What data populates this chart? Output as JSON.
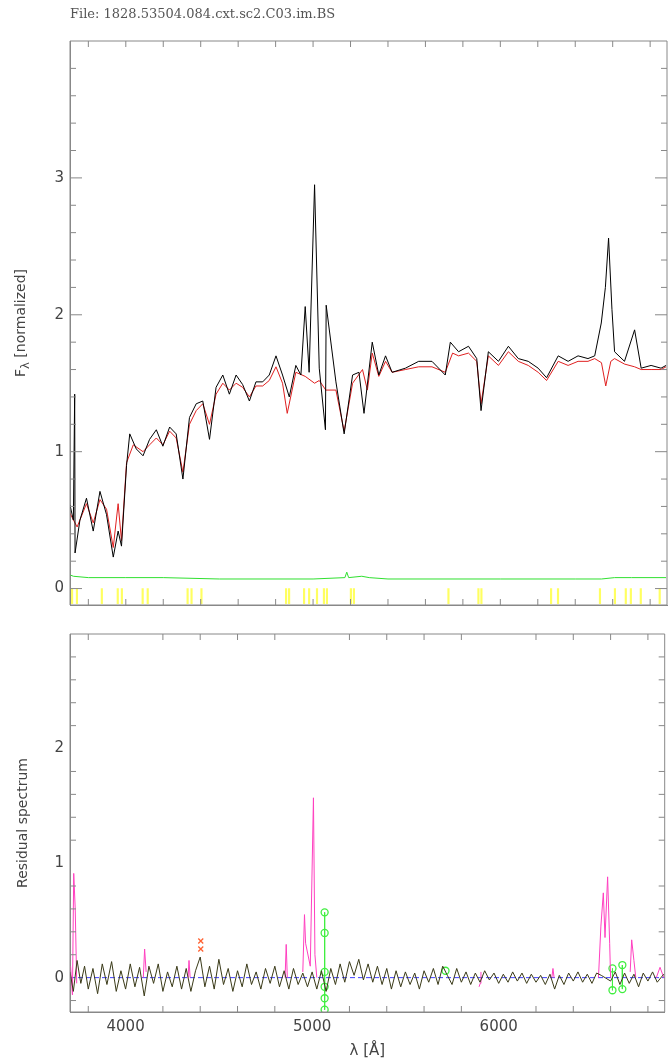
{
  "chart_data": [
    {
      "type": "line",
      "title": "File: 1828.53504.084.cxt.sc2.C03.im.BS",
      "ylabel": "F$_{λ}$ [normalized]",
      "xlim": [
        3702,
        6890
      ],
      "ylim": [
        -0.12,
        4
      ],
      "tick_labels": "y",
      "xticks": [
        {
          "value": 3800,
          "label": null
        },
        {
          "value": 4000,
          "label": null
        },
        {
          "value": 4200,
          "label": null
        },
        {
          "value": 4400,
          "label": null
        },
        {
          "value": 4600,
          "label": null
        },
        {
          "value": 4800,
          "label": null
        },
        {
          "value": 5000,
          "label": null
        },
        {
          "value": 5200,
          "label": null
        },
        {
          "value": 5400,
          "label": null
        },
        {
          "value": 5600,
          "label": null
        },
        {
          "value": 5800,
          "label": null
        },
        {
          "value": 6000,
          "label": null
        },
        {
          "value": 6200,
          "label": null
        },
        {
          "value": 6400,
          "label": null
        },
        {
          "value": 6600,
          "label": null
        },
        {
          "value": 6800,
          "label": null
        }
      ],
      "yticks": [
        0,
        {
          "value": 0.2,
          "label": null
        },
        {
          "value": 0.4,
          "label": null
        },
        {
          "value": 0.6,
          "label": null
        },
        {
          "value": 0.8,
          "label": null
        },
        1,
        {
          "value": 1.2,
          "label": null
        },
        {
          "value": 1.4,
          "label": null
        },
        {
          "value": 1.6,
          "label": null
        },
        {
          "value": 1.8,
          "label": null
        },
        2,
        {
          "value": 2.2,
          "label": null
        },
        {
          "value": 2.4,
          "label": null
        },
        {
          "value": 2.6,
          "label": null
        },
        {
          "value": 2.8,
          "label": null
        },
        3,
        {
          "value": 3.2,
          "label": null
        },
        {
          "value": 3.4,
          "label": null
        },
        {
          "value": 3.6,
          "label": null
        },
        {
          "value": 3.8,
          "label": null
        }
      ],
      "series": [
        {
          "type": "bar",
          "color": "#ffff60",
          "x": [
            3713,
            3739,
            3872,
            3957,
            3979,
            4090,
            4117,
            4330,
            4351,
            4404,
            4856,
            4872,
            4952,
            4979,
            5021,
            5058,
            5074,
            5202,
            5218,
            5723,
            5883,
            5899,
            6271,
            6308,
            6532,
            6612,
            6670,
            6697,
            6750,
            6851
          ],
          "values": [
            -0.11,
            -0.11,
            -0.11,
            -0.11,
            -0.11,
            -0.11,
            -0.11,
            -0.11,
            -0.11,
            -0.11,
            -0.11,
            -0.11,
            -0.11,
            -0.11,
            -0.11,
            -0.11,
            -0.11,
            -0.11,
            -0.11,
            -0.11,
            -0.11,
            -0.11,
            -0.11,
            -0.11,
            -0.11,
            -0.11,
            -0.11,
            -0.11,
            -0.11,
            -0.11
          ]
        },
        {
          "color": "#30e030",
          "marker": "none",
          "x": [
            3702,
            3720,
            3800,
            4000,
            4200,
            4500,
            5000,
            5170,
            5180,
            5190,
            5260,
            5300,
            5400,
            6000,
            6400,
            6540,
            6610,
            6700,
            6885
          ],
          "values": [
            0.1,
            0.09,
            0.08,
            0.08,
            0.08,
            0.07,
            0.07,
            0.08,
            0.12,
            0.08,
            0.09,
            0.08,
            0.07,
            0.07,
            0.07,
            0.07,
            0.08,
            0.08,
            0.08
          ]
        },
        {
          "color": "#000000",
          "marker": "none",
          "x": [
            3702,
            3720,
            3727,
            3729,
            3755,
            3790,
            3826,
            3862,
            3897,
            3933,
            3959,
            3977,
            4004,
            4021,
            4056,
            4092,
            4127,
            4163,
            4198,
            4234,
            4269,
            4305,
            4340,
            4376,
            4411,
            4447,
            4482,
            4518,
            4553,
            4589,
            4624,
            4660,
            4695,
            4731,
            4766,
            4802,
            4837,
            4873,
            4908,
            4935,
            4958,
            4979,
            5008,
            5033,
            5066,
            5070,
            5122,
            5166,
            5211,
            5245,
            5272,
            5316,
            5351,
            5387,
            5422,
            5493,
            5564,
            5635,
            5706,
            5733,
            5777,
            5830,
            5874,
            5897,
            5936,
            5990,
            6043,
            6096,
            6149,
            6202,
            6247,
            6309,
            6362,
            6415,
            6468,
            6504,
            6539,
            6561,
            6578,
            6596,
            6610,
            6663,
            6717,
            6752,
            6805,
            6858,
            6885
          ],
          "values": [
            0.61,
            0.5,
            1.42,
            0.26,
            0.5,
            0.66,
            0.42,
            0.71,
            0.54,
            0.23,
            0.42,
            0.31,
            0.9,
            1.13,
            1.02,
            0.97,
            1.09,
            1.16,
            1.04,
            1.18,
            1.13,
            0.8,
            1.25,
            1.35,
            1.37,
            1.09,
            1.47,
            1.56,
            1.42,
            1.56,
            1.49,
            1.37,
            1.51,
            1.51,
            1.56,
            1.7,
            1.56,
            1.4,
            1.63,
            1.56,
            2.06,
            1.58,
            2.95,
            1.61,
            1.16,
            2.07,
            1.51,
            1.13,
            1.56,
            1.58,
            1.28,
            1.8,
            1.56,
            1.7,
            1.58,
            1.61,
            1.66,
            1.66,
            1.56,
            1.8,
            1.73,
            1.77,
            1.68,
            1.3,
            1.73,
            1.66,
            1.77,
            1.68,
            1.66,
            1.61,
            1.54,
            1.7,
            1.66,
            1.7,
            1.68,
            1.7,
            1.94,
            2.2,
            2.56,
            2.04,
            1.73,
            1.66,
            1.89,
            1.61,
            1.63,
            1.61,
            1.63
          ]
        },
        {
          "color": "#e02020",
          "marker": "none",
          "x": [
            3702,
            3740,
            3790,
            3826,
            3862,
            3897,
            3933,
            3959,
            3977,
            4004,
            4040,
            4092,
            4127,
            4163,
            4198,
            4234,
            4269,
            4305,
            4340,
            4376,
            4411,
            4447,
            4482,
            4518,
            4553,
            4589,
            4624,
            4660,
            4695,
            4731,
            4766,
            4802,
            4837,
            4862,
            4908,
            4958,
            5008,
            5033,
            5068,
            5122,
            5166,
            5211,
            5264,
            5290,
            5316,
            5351,
            5387,
            5422,
            5493,
            5564,
            5635,
            5706,
            5745,
            5777,
            5830,
            5874,
            5897,
            5936,
            5990,
            6043,
            6096,
            6149,
            6202,
            6247,
            6309,
            6362,
            6415,
            6468,
            6504,
            6540,
            6563,
            6590,
            6610,
            6663,
            6717,
            6752,
            6805,
            6858,
            6885
          ],
          "values": [
            0.55,
            0.45,
            0.62,
            0.48,
            0.65,
            0.58,
            0.3,
            0.62,
            0.35,
            0.92,
            1.05,
            1.0,
            1.05,
            1.1,
            1.05,
            1.15,
            1.1,
            0.85,
            1.2,
            1.3,
            1.35,
            1.2,
            1.42,
            1.5,
            1.45,
            1.5,
            1.47,
            1.4,
            1.48,
            1.48,
            1.52,
            1.62,
            1.5,
            1.28,
            1.58,
            1.55,
            1.5,
            1.52,
            1.45,
            1.45,
            1.15,
            1.5,
            1.6,
            1.45,
            1.72,
            1.55,
            1.66,
            1.58,
            1.6,
            1.62,
            1.62,
            1.58,
            1.72,
            1.7,
            1.72,
            1.66,
            1.35,
            1.7,
            1.63,
            1.73,
            1.66,
            1.63,
            1.58,
            1.52,
            1.66,
            1.63,
            1.66,
            1.66,
            1.68,
            1.65,
            1.48,
            1.66,
            1.68,
            1.64,
            1.62,
            1.6,
            1.6,
            1.6,
            1.62
          ]
        }
      ]
    },
    {
      "type": "line",
      "xlabel": "λ [Å]",
      "ylabel": "Residual spectrum",
      "xlim": [
        3702,
        6890
      ],
      "ylim": [
        -0.3,
        3
      ],
      "xticks": [
        {
          "value": 3800,
          "label": null
        },
        4000,
        {
          "value": 4200,
          "label": null
        },
        {
          "value": 4400,
          "label": null
        },
        {
          "value": 4600,
          "label": null
        },
        {
          "value": 4800,
          "label": null
        },
        5000,
        {
          "value": 5200,
          "label": null
        },
        {
          "value": 5400,
          "label": null
        },
        {
          "value": 5600,
          "label": null
        },
        {
          "value": 5800,
          "label": null
        },
        6000,
        {
          "value": 6200,
          "label": null
        },
        {
          "value": 6400,
          "label": null
        },
        {
          "value": 6600,
          "label": null
        },
        {
          "value": 6800,
          "label": null
        }
      ],
      "yticks": [
        {
          "value": -0.2,
          "label": null
        },
        0,
        {
          "value": 0.2,
          "label": null
        },
        {
          "value": 0.4,
          "label": null
        },
        {
          "value": 0.6,
          "label": null
        },
        {
          "value": 0.8,
          "label": null
        },
        1,
        {
          "value": 1.2,
          "label": null
        },
        {
          "value": 1.4,
          "label": null
        },
        {
          "value": 1.6,
          "label": null
        },
        {
          "value": 1.8,
          "label": null
        },
        2,
        {
          "value": 2.2,
          "label": null
        },
        {
          "value": 2.4,
          "label": null
        },
        {
          "value": 2.6,
          "label": null
        },
        {
          "value": 2.8,
          "label": null
        }
      ],
      "ref_lines": [
        {
          "axis": "y",
          "value": 0,
          "label": null,
          "color": "#4040ff",
          "line_style": "dashed"
        }
      ],
      "series": [
        {
          "color": "#3a3a18",
          "marker": "none",
          "x": [
            3702,
            3720,
            3740,
            3760,
            3780,
            3800,
            3825,
            3850,
            3875,
            3900,
            3925,
            3950,
            3975,
            4000,
            4025,
            4050,
            4075,
            4100,
            4125,
            4150,
            4175,
            4200,
            4225,
            4250,
            4275,
            4300,
            4325,
            4350,
            4375,
            4400,
            4425,
            4450,
            4475,
            4500,
            4525,
            4550,
            4575,
            4600,
            4625,
            4650,
            4675,
            4700,
            4725,
            4750,
            4775,
            4800,
            4825,
            4850,
            4875,
            4900,
            4925,
            4950,
            4975,
            5000,
            5025,
            5050,
            5075,
            5100,
            5125,
            5150,
            5175,
            5200,
            5225,
            5250,
            5275,
            5300,
            5325,
            5350,
            5375,
            5400,
            5425,
            5450,
            5475,
            5500,
            5525,
            5550,
            5575,
            5600,
            5625,
            5650,
            5675,
            5700,
            5725,
            5750,
            5775,
            5800,
            5825,
            5850,
            5875,
            5900,
            5925,
            5950,
            5975,
            6000,
            6025,
            6050,
            6075,
            6100,
            6125,
            6150,
            6175,
            6200,
            6225,
            6250,
            6275,
            6300,
            6325,
            6350,
            6375,
            6400,
            6425,
            6450,
            6475,
            6500,
            6525,
            6550,
            6600,
            6625,
            6650,
            6675,
            6700,
            6725,
            6750,
            6775,
            6800,
            6825,
            6850,
            6885
          ],
          "values": [
            0.05,
            -0.12,
            0.15,
            -0.05,
            0.1,
            -0.1,
            0.08,
            -0.14,
            0.12,
            -0.06,
            0.14,
            -0.12,
            0.06,
            -0.1,
            0.12,
            -0.08,
            0.09,
            -0.16,
            0.1,
            -0.05,
            0.12,
            -0.12,
            0.05,
            -0.08,
            0.1,
            -0.1,
            0.08,
            -0.12,
            0.06,
            0.18,
            -0.08,
            0.1,
            -0.1,
            0.16,
            -0.06,
            0.08,
            -0.12,
            0.06,
            -0.08,
            0.12,
            -0.06,
            0.05,
            -0.1,
            0.08,
            -0.05,
            0.1,
            -0.08,
            0.06,
            -0.1,
            0.08,
            -0.06,
            0.04,
            -0.08,
            0.05,
            -0.1,
            0.06,
            -0.12,
            0.08,
            -0.06,
            0.12,
            -0.04,
            0.14,
            0.02,
            0.16,
            -0.02,
            0.12,
            -0.04,
            0.1,
            -0.06,
            0.08,
            -0.1,
            0.06,
            -0.08,
            0.05,
            -0.06,
            0.04,
            -0.1,
            0.06,
            -0.04,
            0.08,
            -0.06,
            0.1,
            0.02,
            -0.06,
            0.08,
            -0.04,
            0.05,
            -0.06,
            0.04,
            -0.04,
            0.06,
            -0.02,
            0.04,
            -0.05,
            0.03,
            -0.04,
            0.05,
            -0.03,
            0.04,
            -0.05,
            0.03,
            -0.04,
            0.02,
            -0.06,
            0.03,
            -0.1,
            0.02,
            -0.06,
            0.04,
            -0.03,
            0.05,
            -0.04,
            0.03,
            -0.05,
            0.04,
            0.02,
            -0.03,
            0.05,
            -0.06,
            0.04,
            -0.05,
            0.03,
            -0.08,
            0.04,
            -0.03,
            0.05,
            -0.04,
            0.03
          ]
        },
        {
          "color": "#ff40c0",
          "marker": "none",
          "x": [
            3705,
            3715,
            3722,
            3730,
            3738,
            3745,
            4095,
            4102,
            4110,
            4115,
            4335,
            4340,
            4346,
            4350,
            4855,
            4861,
            4867,
            4900,
            4950,
            4959,
            4965,
            4990,
            5007,
            5015,
            5025,
            5030,
            5895,
            5901,
            5905,
            5950,
            6285,
            6291,
            6297,
            6300,
            6535,
            6548,
            6561,
            6570,
            6584,
            6595,
            6600,
            6650,
            6705,
            6713,
            6725,
            6735,
            6800,
            6845,
            6865,
            6885
          ],
          "values": [
            0.1,
            -0.15,
            0.91,
            0.6,
            -0.05,
            null,
            0.0,
            0.25,
            0.05,
            null,
            0.0,
            0.15,
            0.0,
            null,
            0.0,
            0.29,
            0.0,
            null,
            0.05,
            0.55,
            0.3,
            0.1,
            1.57,
            0.2,
            0.0,
            null,
            -0.08,
            -0.05,
            0.05,
            null,
            0.0,
            0.08,
            0.0,
            null,
            0.0,
            0.45,
            0.74,
            0.35,
            0.88,
            0.3,
            0.0,
            null,
            0.05,
            0.33,
            0.15,
            0.0,
            null,
            0.0,
            0.09,
            0.0
          ]
        },
        {
          "color": "#40ee40",
          "marker": "circle",
          "x": [
            5067,
            5067,
            5067,
            5067,
            5067,
            5067,
            5300,
            5715,
            6000,
            6610,
            6610,
            6640,
            6663,
            6663
          ],
          "values": [
            0.57,
            0.39,
            0.05,
            -0.08,
            -0.18,
            -0.28,
            null,
            0.06,
            null,
            0.08,
            -0.11,
            null,
            0.11,
            -0.1
          ]
        },
        {
          "type": "scatter",
          "color": "#ff6030",
          "marker": "cross",
          "x": [
            4403,
            4403
          ],
          "values": [
            0.32,
            0.25
          ]
        }
      ]
    }
  ]
}
